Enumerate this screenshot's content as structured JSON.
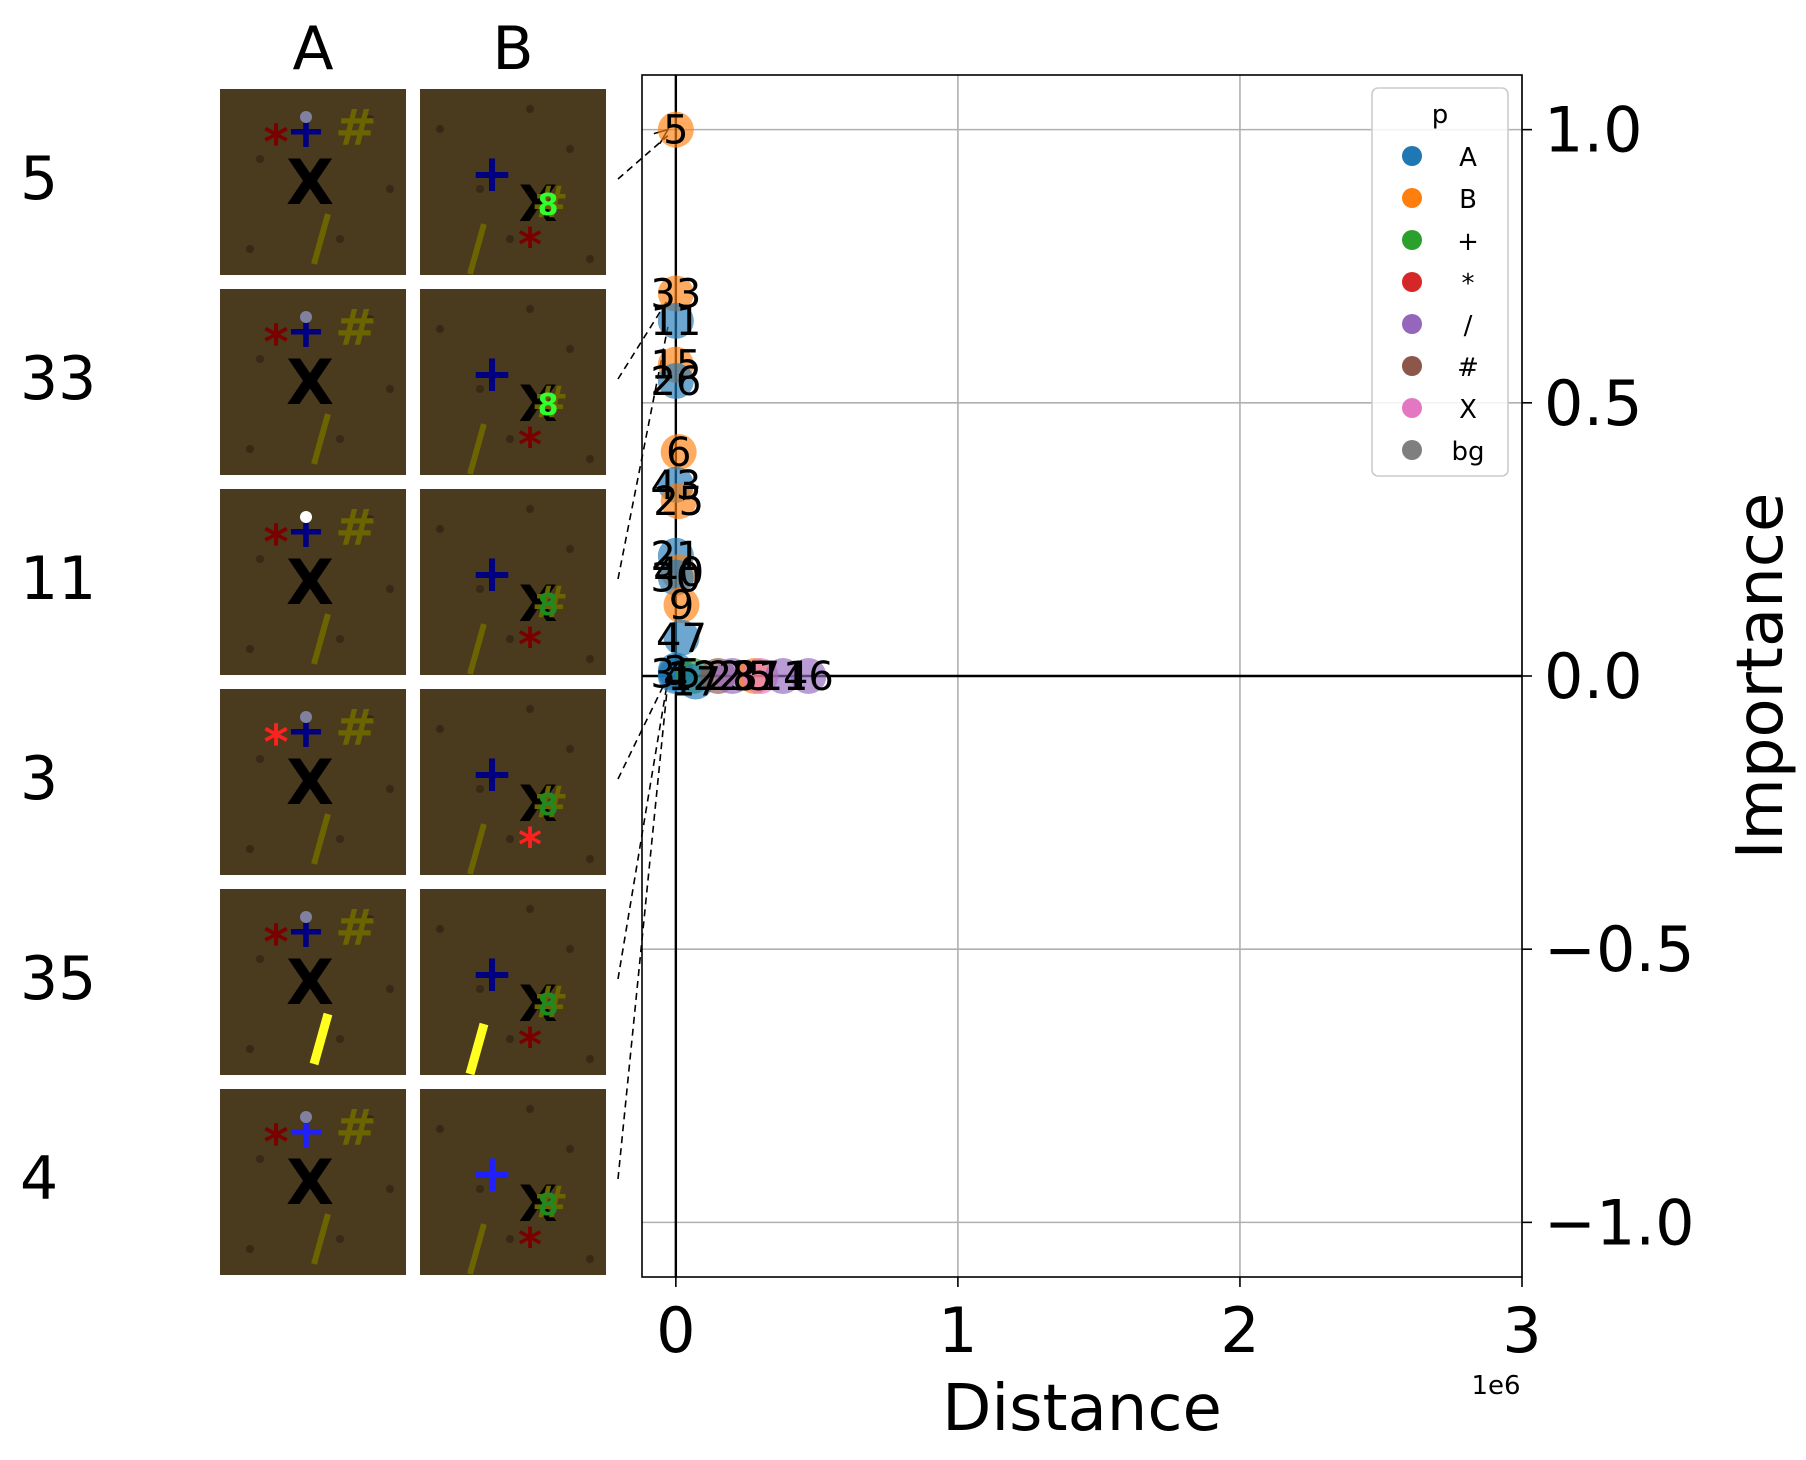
{
  "panel_columns": [
    "A",
    "B"
  ],
  "rows": [
    {
      "label": "5",
      "highlight_a": null,
      "highlight_b": "#",
      "point_series": "B"
    },
    {
      "label": "33",
      "highlight_a": null,
      "highlight_b": "#",
      "point_series": "B"
    },
    {
      "label": "11",
      "highlight_a": "A-obj",
      "highlight_b": null,
      "point_series": "A"
    },
    {
      "label": "3",
      "highlight_a": "*",
      "highlight_b": "*",
      "point_series": "A"
    },
    {
      "label": "35",
      "highlight_a": "/",
      "highlight_b": "/",
      "point_series": "A"
    },
    {
      "label": "4",
      "highlight_a": "+",
      "highlight_b": "+",
      "point_series": "A"
    }
  ],
  "colors": {
    "A": "#1f77b4",
    "B": "#ff7f0e",
    "+": "#2ca02c",
    "*": "#d62728",
    "/": "#9467bd",
    "#": "#8c564b",
    "X": "#e377c2",
    "bg": "#7f7f7f",
    "thumb_bg": "#4a3a1e"
  },
  "chart_data": {
    "type": "scatter",
    "xlabel": "Distance",
    "ylabel": "Importance",
    "x_offset_label": "1e6",
    "xlim": [
      -0.12,
      3.0
    ],
    "ylim": [
      -1.1,
      1.1
    ],
    "xticks": [
      0,
      1,
      2,
      3
    ],
    "xtick_labels": [
      "0",
      "1",
      "2",
      "3"
    ],
    "yticks": [
      1.0,
      0.5,
      0.0,
      -0.5,
      -1.0
    ],
    "ytick_labels": [
      "1.0",
      "0.5",
      "0.0",
      "−0.5",
      "−1.0"
    ],
    "grid": true,
    "legend": {
      "title": "p",
      "placement": "top-right",
      "entries": [
        "A",
        "B",
        "+",
        "*",
        "/",
        "#",
        "X",
        "bg"
      ]
    },
    "points": [
      {
        "label": "5",
        "series": "B",
        "x": 0.0,
        "y": 1.0
      },
      {
        "label": "33",
        "series": "B",
        "x": 0.0,
        "y": 0.7
      },
      {
        "label": "11",
        "series": "A",
        "x": 0.0,
        "y": 0.65
      },
      {
        "label": "15",
        "series": "B",
        "x": 0.0,
        "y": 0.57
      },
      {
        "label": "26",
        "series": "A",
        "x": 0.0,
        "y": 0.54
      },
      {
        "label": "6",
        "series": "B",
        "x": 0.01,
        "y": 0.41
      },
      {
        "label": "43",
        "series": "A",
        "x": 0.0,
        "y": 0.35
      },
      {
        "label": "25",
        "series": "B",
        "x": 0.01,
        "y": 0.32
      },
      {
        "label": "21",
        "series": "A",
        "x": 0.0,
        "y": 0.22
      },
      {
        "label": "40",
        "series": "B",
        "x": 0.01,
        "y": 0.19
      },
      {
        "label": "30",
        "series": "A",
        "x": 0.0,
        "y": 0.18
      },
      {
        "label": "9",
        "series": "B",
        "x": 0.02,
        "y": 0.13
      },
      {
        "label": "47",
        "series": "A",
        "x": 0.02,
        "y": 0.07
      },
      {
        "label": "3",
        "series": "A",
        "x": 0.0,
        "y": 0.01
      },
      {
        "label": "35",
        "series": "A",
        "x": 0.0,
        "y": 0.005
      },
      {
        "label": "4",
        "series": "A",
        "x": 0.0,
        "y": 0.0
      },
      {
        "label": "12",
        "series": "+",
        "x": 0.06,
        "y": 0.0
      },
      {
        "label": "17",
        "series": "A",
        "x": 0.07,
        "y": -0.01
      },
      {
        "label": "22",
        "series": "#",
        "x": 0.15,
        "y": 0.0
      },
      {
        "label": "28",
        "series": "/",
        "x": 0.2,
        "y": 0.0
      },
      {
        "label": "37",
        "series": "B",
        "x": 0.28,
        "y": 0.0
      },
      {
        "label": "5",
        "series": "X",
        "x": 0.3,
        "y": 0.0
      },
      {
        "label": "14",
        "series": "/",
        "x": 0.38,
        "y": 0.0
      },
      {
        "label": "16",
        "series": "/",
        "x": 0.47,
        "y": 0.0
      }
    ]
  }
}
